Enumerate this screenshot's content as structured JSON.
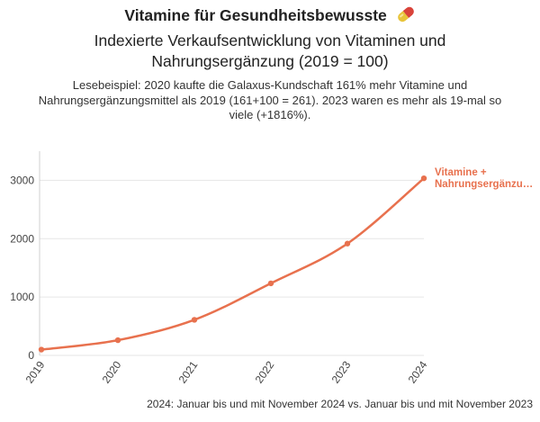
{
  "header": {
    "title": "Vitamine für Gesundheitsbewusste",
    "title_icon": "pill-capsule-icon",
    "subtitle_line1": "Indexierte Verkaufsentwicklung von Vitaminen und",
    "subtitle_line2": "Nahrungsergänzung (2019 = 100)",
    "reading_line1": "Lesebeispiel: 2020 kaufte die Galaxus-Kundschaft 161% mehr Vitamine und",
    "reading_line2": "Nahrungsergänzungsmittel als 2019 (161+100 = 261). 2023 waren es mehr als 19-mal so",
    "reading_line3": "viele (+1816%)."
  },
  "chart_data": {
    "type": "line",
    "categories": [
      "2019",
      "2020",
      "2021",
      "2022",
      "2023",
      "2024"
    ],
    "series": [
      {
        "name": "Vitamine + Nahrungsergänzu…",
        "name_line1": "Vitamine +",
        "name_line2": "Nahrungsergänzu…",
        "values": [
          100,
          261,
          610,
          1235,
          1916,
          3035
        ],
        "color": "#e8714e"
      }
    ],
    "yticks": [
      0,
      1000,
      2000,
      3000
    ],
    "ylim": [
      0,
      3500
    ],
    "grid": true
  },
  "footnote": "2024: Januar bis und mit November 2024 vs. Januar bis und mit November 2023"
}
